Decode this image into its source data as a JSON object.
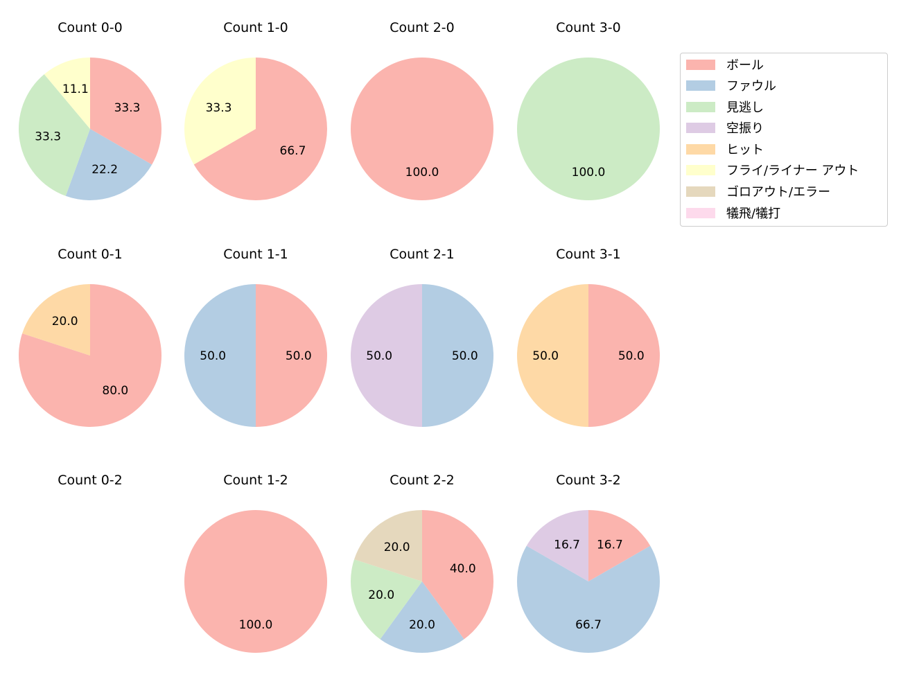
{
  "legend": {
    "items": [
      {
        "label": "ボール",
        "color": "#fbb4ae"
      },
      {
        "label": "ファウル",
        "color": "#b3cde3"
      },
      {
        "label": "見逃し",
        "color": "#ccebc5"
      },
      {
        "label": "空振り",
        "color": "#decbe4"
      },
      {
        "label": "ヒット",
        "color": "#fed9a6"
      },
      {
        "label": "フライ/ライナー アウト",
        "color": "#ffffcc"
      },
      {
        "label": "ゴロアウト/エラー",
        "color": "#e5d8bd"
      },
      {
        "label": "犠飛/犠打",
        "color": "#fddaec"
      }
    ]
  },
  "chart_data": {
    "type": "pie",
    "title": "",
    "categories": [
      "ボール",
      "ファウル",
      "見逃し",
      "空振り",
      "ヒット",
      "フライ/ライナー アウト",
      "ゴロアウト/エラー",
      "犠飛/犠打"
    ],
    "start_angle": 90,
    "direction": "clockwise",
    "subplots": [
      {
        "title": "Count 0-0",
        "row": 0,
        "col": 0,
        "values": [
          33.3,
          22.2,
          33.3,
          0,
          0,
          11.1,
          0,
          0
        ]
      },
      {
        "title": "Count 1-0",
        "row": 0,
        "col": 1,
        "values": [
          66.7,
          0,
          0,
          0,
          0,
          33.3,
          0,
          0
        ]
      },
      {
        "title": "Count 2-0",
        "row": 0,
        "col": 2,
        "values": [
          100.0,
          0,
          0,
          0,
          0,
          0,
          0,
          0
        ]
      },
      {
        "title": "Count 3-0",
        "row": 0,
        "col": 3,
        "values": [
          0,
          0,
          100.0,
          0,
          0,
          0,
          0,
          0
        ]
      },
      {
        "title": "Count 0-1",
        "row": 1,
        "col": 0,
        "values": [
          80.0,
          0,
          0,
          0,
          20.0,
          0,
          0,
          0
        ]
      },
      {
        "title": "Count 1-1",
        "row": 1,
        "col": 1,
        "values": [
          50.0,
          50.0,
          0,
          0,
          0,
          0,
          0,
          0
        ]
      },
      {
        "title": "Count 2-1",
        "row": 1,
        "col": 2,
        "values": [
          0,
          50.0,
          0,
          50.0,
          0,
          0,
          0,
          0
        ]
      },
      {
        "title": "Count 3-1",
        "row": 1,
        "col": 3,
        "values": [
          50.0,
          0,
          0,
          0,
          50.0,
          0,
          0,
          0
        ]
      },
      {
        "title": "Count 0-2",
        "row": 2,
        "col": 0,
        "values": []
      },
      {
        "title": "Count 1-2",
        "row": 2,
        "col": 1,
        "values": [
          100.0,
          0,
          0,
          0,
          0,
          0,
          0,
          0
        ]
      },
      {
        "title": "Count 2-2",
        "row": 2,
        "col": 2,
        "values": [
          40.0,
          20.0,
          20.0,
          0,
          0,
          0,
          20.0,
          0
        ]
      },
      {
        "title": "Count 3-2",
        "row": 2,
        "col": 3,
        "values": [
          16.7,
          66.7,
          0,
          16.7,
          0,
          0,
          0,
          0
        ]
      }
    ]
  }
}
